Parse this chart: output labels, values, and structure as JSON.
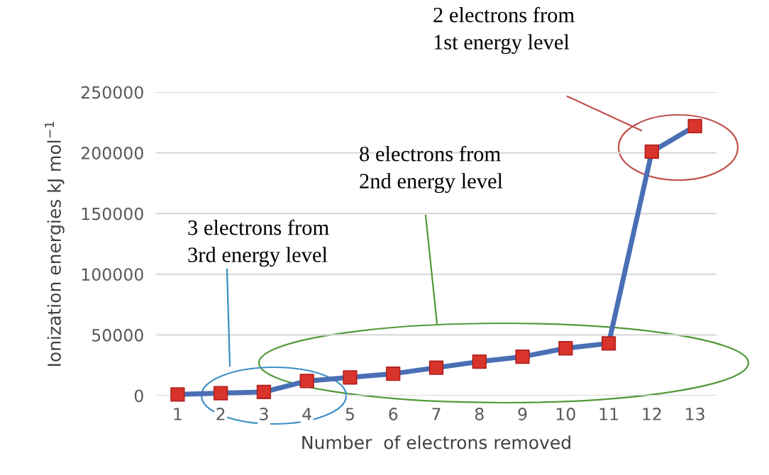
{
  "chart_data": {
    "type": "line",
    "categories": [
      "1",
      "2",
      "3",
      "4",
      "5",
      "6",
      "7",
      "8",
      "9",
      "10",
      "11",
      "12",
      "13"
    ],
    "series": [
      {
        "color": "#4a6fb5",
        "colors": [
          "#d9342b",
          "#d9342b",
          "#d9342b",
          "#d9342b",
          "#d9342b",
          "#d9342b",
          "#d9342b",
          "#d9342b",
          "#d9342b",
          "#d9342b",
          "#d9342b",
          "#d9342b",
          "#d9342b"
        ],
        "values": [
          1000,
          2000,
          3000,
          12000,
          15000,
          18000,
          23000,
          28000,
          32000,
          39000,
          43000,
          201000,
          222000
        ]
      }
    ],
    "xlabel": "Number  of electrons removed",
    "ylabel": "Ionization energies kJ mol$^{−1}$",
    "ylim": [
      0,
      250000
    ],
    "yticks": [
      0,
      50000,
      100000,
      150000,
      200000,
      250000
    ],
    "grid": "y",
    "marker": "square",
    "line_style": "solid",
    "annotations": [
      "2 electrons from\n1st energy level",
      "8 electrons from\n2nd energy level",
      "3 electrons from\n3rd energy level"
    ]
  }
}
